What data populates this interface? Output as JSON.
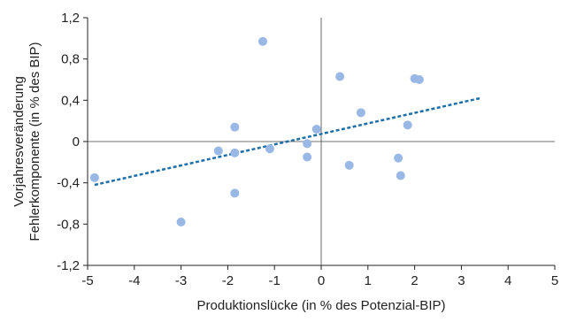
{
  "chart_data": {
    "type": "scatter",
    "title": "",
    "xlabel": "Produktionslücke (in % des Potenzial-BIP)",
    "ylabel_lines": [
      "Vorjahresveränderung",
      "Fehlerkomponente (in % des BIP)"
    ],
    "xlim": [
      -5,
      5
    ],
    "ylim": [
      -1.2,
      1.2
    ],
    "x_ticks": [
      -5,
      -4,
      -3,
      -2,
      -1,
      0,
      1,
      2,
      3,
      4,
      5
    ],
    "x_tick_labels": [
      "-5",
      "-4",
      "-3",
      "-2",
      "-1",
      "0",
      "1",
      "2",
      "3",
      "4",
      "5"
    ],
    "y_ticks": [
      -1.2,
      -0.8,
      -0.4,
      0,
      0.4,
      0.8,
      1.2
    ],
    "y_tick_labels": [
      "-1,2",
      "-0,8",
      "-0,4",
      "0",
      "0,4",
      "0,8",
      "1,2"
    ],
    "grid": false,
    "zero_lines": true,
    "points": [
      {
        "x": -4.85,
        "y": -0.35
      },
      {
        "x": -3.0,
        "y": -0.78
      },
      {
        "x": -2.2,
        "y": -0.09
      },
      {
        "x": -1.85,
        "y": 0.14
      },
      {
        "x": -1.85,
        "y": -0.11
      },
      {
        "x": -1.85,
        "y": -0.5
      },
      {
        "x": -1.25,
        "y": 0.97
      },
      {
        "x": -1.1,
        "y": -0.07
      },
      {
        "x": -0.3,
        "y": -0.02
      },
      {
        "x": -0.3,
        "y": -0.15
      },
      {
        "x": -0.1,
        "y": 0.12
      },
      {
        "x": 0.4,
        "y": 0.63
      },
      {
        "x": 0.6,
        "y": -0.23
      },
      {
        "x": 0.85,
        "y": 0.28
      },
      {
        "x": 1.65,
        "y": -0.16
      },
      {
        "x": 1.7,
        "y": -0.33
      },
      {
        "x": 1.85,
        "y": 0.16
      },
      {
        "x": 2.0,
        "y": 0.61
      },
      {
        "x": 2.1,
        "y": 0.6
      }
    ],
    "trendline": {
      "x": [
        -4.85,
        3.4
      ],
      "y": [
        -0.42,
        0.42
      ],
      "style": "dashed"
    },
    "colors": {
      "points": "#9ab8e6",
      "trendline": "#1f6fa8",
      "axes": "#222222",
      "zero_lines": "#444444"
    }
  }
}
